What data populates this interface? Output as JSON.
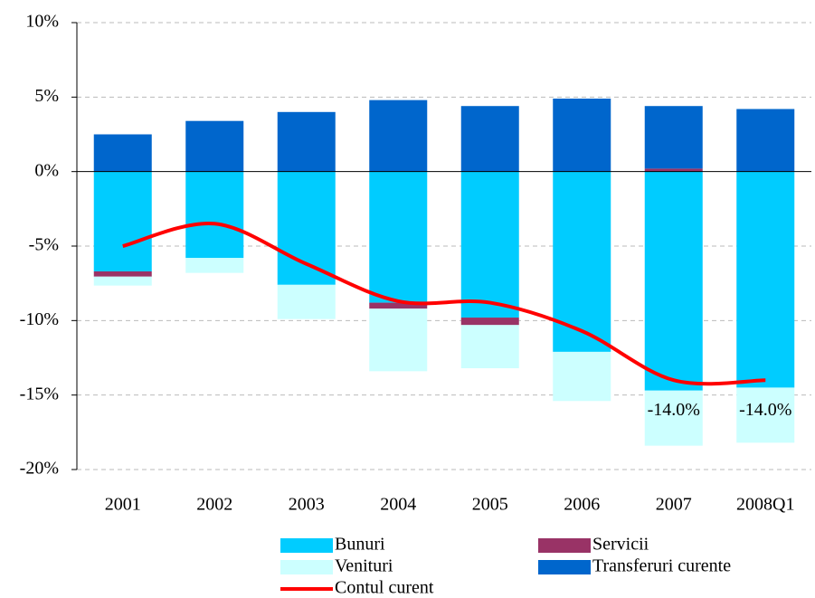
{
  "chart_data": {
    "type": "bar",
    "categories": [
      "2001",
      "2002",
      "2003",
      "2004",
      "2005",
      "2006",
      "2007",
      "2008Q1"
    ],
    "series": [
      {
        "name": "Bunuri",
        "color": "#00ccff",
        "values": [
          -6.7,
          -5.8,
          -7.6,
          -8.8,
          -9.8,
          -12.1,
          -14.7,
          -14.5
        ]
      },
      {
        "name": "Servicii",
        "color": "#993366",
        "values": [
          -0.35,
          0,
          0,
          -0.4,
          -0.5,
          0,
          0.2,
          0
        ]
      },
      {
        "name": "Venituri",
        "color": "#ccffff",
        "values": [
          -0.6,
          -1.0,
          -2.3,
          -4.2,
          -2.9,
          -3.3,
          -3.7,
          -3.7
        ]
      },
      {
        "name": "Transferuri curente",
        "color": "#0066cc",
        "values": [
          2.5,
          3.4,
          4.0,
          4.8,
          4.4,
          4.9,
          4.2,
          4.2
        ]
      },
      {
        "name": "Contul curent",
        "color": "#ff0000",
        "type": "line",
        "values": [
          -5.0,
          -3.5,
          -6.2,
          -8.7,
          -8.8,
          -10.7,
          -14.0,
          -14.0
        ],
        "value_labels": [
          null,
          null,
          null,
          null,
          null,
          null,
          "-14.0%",
          "-14.0%"
        ]
      }
    ],
    "ylim": [
      -20,
      10
    ],
    "yticks": [
      {
        "value": -20,
        "label": "-20%"
      },
      {
        "value": -15,
        "label": "-15%"
      },
      {
        "value": -10,
        "label": "-10%"
      },
      {
        "value": -5,
        "label": "-5%"
      },
      {
        "value": 0,
        "label": "0%"
      },
      {
        "value": 5,
        "label": "5%"
      },
      {
        "value": 10,
        "label": "10%"
      }
    ],
    "grid": true
  }
}
